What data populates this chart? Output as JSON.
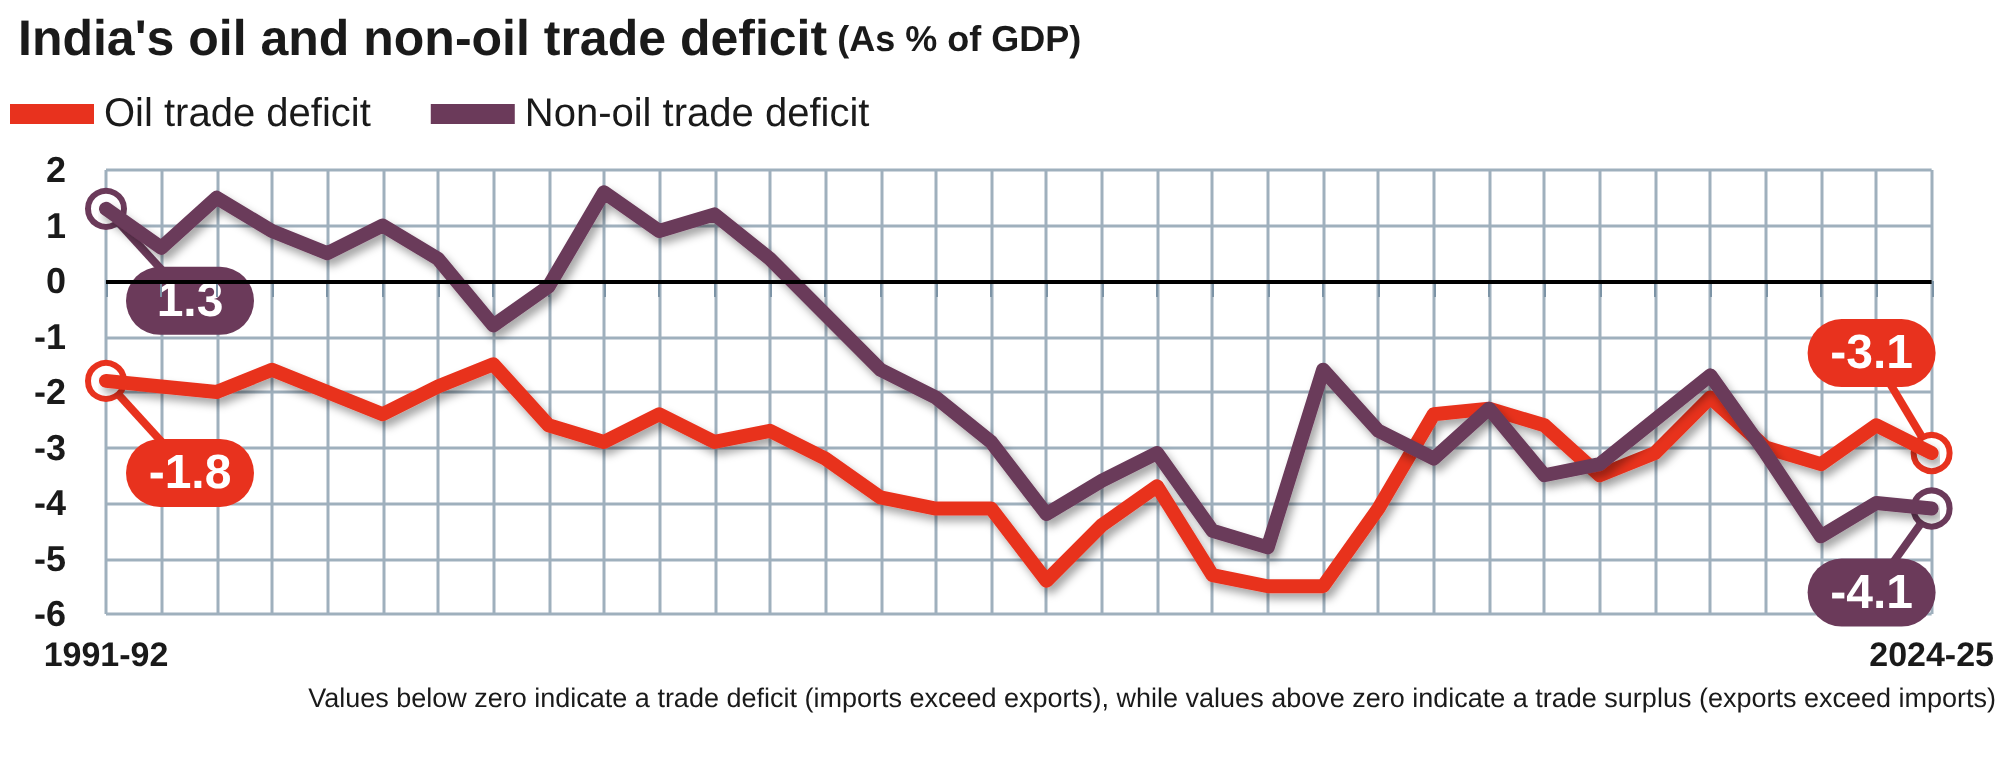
{
  "chart_data": {
    "type": "line",
    "title": "India's oil and non-oil trade deficit",
    "subtitle": "(As % of GDP)",
    "categories": [
      "1991-92",
      null,
      null,
      null,
      null,
      null,
      null,
      null,
      null,
      null,
      null,
      null,
      null,
      null,
      null,
      null,
      null,
      null,
      null,
      null,
      null,
      null,
      null,
      null,
      null,
      null,
      null,
      null,
      null,
      null,
      null,
      null,
      null,
      "2024-25"
    ],
    "series": [
      {
        "name": "Oil trade deficit",
        "color": "#e8321e",
        "values": [
          -1.8,
          -1.9,
          -2.0,
          -1.6,
          -2.0,
          -2.4,
          -1.9,
          -1.5,
          -2.6,
          -2.9,
          -2.4,
          -2.9,
          -2.7,
          -3.2,
          -3.9,
          -4.1,
          -4.1,
          -5.4,
          -4.4,
          -3.7,
          -5.3,
          -5.5,
          -5.5,
          -4.1,
          -2.4,
          -2.3,
          -2.6,
          -3.5,
          -3.1,
          -2.1,
          -3.0,
          -3.3,
          -2.6,
          -3.1
        ]
      },
      {
        "name": "Non-oil trade deficit",
        "color": "#6b3a5a",
        "values": [
          1.3,
          0.6,
          1.5,
          0.9,
          0.5,
          1.0,
          0.4,
          -0.8,
          -0.1,
          1.6,
          0.9,
          1.2,
          0.4,
          -0.6,
          -1.6,
          -2.1,
          -2.9,
          -4.2,
          -3.6,
          -3.1,
          -4.5,
          -4.8,
          -1.6,
          -2.7,
          -3.2,
          -2.3,
          -3.5,
          -3.3,
          -2.5,
          -1.7,
          -3.1,
          -4.6,
          -4.0,
          -4.1
        ]
      }
    ],
    "ylim": [
      -6,
      2
    ],
    "yticks": [
      -6,
      -5,
      -4,
      -3,
      -2,
      -1,
      0,
      1,
      2
    ],
    "grid": true,
    "legend": "top left",
    "marker": "none",
    "line_style": "solid",
    "ref_lines": [
      {
        "axis": "y",
        "value": 0,
        "color": "#000000"
      }
    ],
    "annotations": [
      {
        "text": "1.3",
        "x": "1991-92",
        "y": 1.3
      },
      {
        "text": "-1.8",
        "x": "1991-92",
        "y": -1.8
      },
      {
        "text": "-3.1",
        "x": "2024-25",
        "y": -3.1
      },
      {
        "text": "-4.1",
        "x": "2024-25",
        "y": -4.1
      },
      "Values below zero indicate a trade deficit (imports exceed exports), while values above zero indicate a trade surplus (exports exceed imports)"
    ]
  }
}
